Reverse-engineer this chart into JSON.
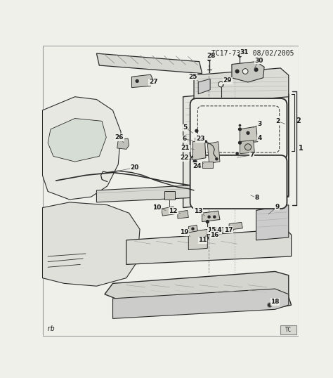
{
  "title": "TC17-733  08/02/2005",
  "bg": "#f0f0eb",
  "lc": "#2a2a2a",
  "tc": "#1a1a1a",
  "figsize": [
    4.74,
    5.38
  ],
  "dpi": 100,
  "watermark": "rb"
}
